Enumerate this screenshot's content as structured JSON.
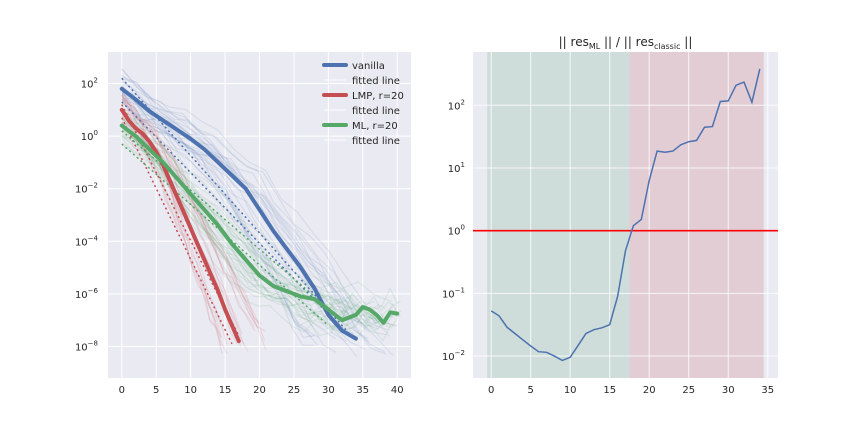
{
  "chart_data": [
    {
      "type": "line",
      "title": "",
      "xlabel": "",
      "ylabel": "",
      "xlim": [
        -2,
        42
      ],
      "ylim_log10": [
        -9.2,
        3.2
      ],
      "yscale": "log",
      "grid": true,
      "legend_position": "top-right",
      "x_ticks": [
        "0",
        "5",
        "10",
        "15",
        "20",
        "25",
        "30",
        "35",
        "40"
      ],
      "y_ticks": [
        {
          "base": "10",
          "exp": "2",
          "log": 2
        },
        {
          "base": "10",
          "exp": "0",
          "log": 0
        },
        {
          "base": "10",
          "exp": "−2",
          "log": -2
        },
        {
          "base": "10",
          "exp": "−4",
          "log": -4
        },
        {
          "base": "10",
          "exp": "−6",
          "log": -6
        },
        {
          "base": "10",
          "exp": "−8",
          "log": -8
        }
      ],
      "legend": [
        {
          "label": "vanilla",
          "color": "#4c72b0",
          "kind": "line"
        },
        {
          "label": "fitted line",
          "color": "#ffffff",
          "kind": "blank"
        },
        {
          "label": "LMP, r=20",
          "color": "#c44e52",
          "kind": "line"
        },
        {
          "label": "fitted line",
          "color": "#ffffff",
          "kind": "blank"
        },
        {
          "label": "ML, r=20",
          "color": "#55a868",
          "kind": "line"
        },
        {
          "label": "fitted line",
          "color": "#ffffff",
          "kind": "blank"
        }
      ],
      "series": [
        {
          "name": "vanilla",
          "color": "#4c72b0",
          "x": [
            0,
            2,
            4,
            6,
            8,
            10,
            12,
            14,
            16,
            18,
            20,
            22,
            24,
            26,
            28,
            30,
            32,
            34
          ],
          "log10_y": [
            1.8,
            1.4,
            0.95,
            0.6,
            0.25,
            -0.1,
            -0.5,
            -1.0,
            -1.5,
            -2.0,
            -2.8,
            -3.6,
            -4.3,
            -5.0,
            -5.8,
            -6.8,
            -7.4,
            -7.7
          ]
        },
        {
          "name": "LMP, r=20",
          "color": "#c44e52",
          "x": [
            0,
            1,
            2,
            3,
            4,
            5,
            6,
            7,
            8,
            9,
            10,
            11,
            12,
            13,
            14,
            15,
            16,
            17
          ],
          "log10_y": [
            1.0,
            0.6,
            0.3,
            0.1,
            -0.2,
            -0.6,
            -1.1,
            -1.7,
            -2.3,
            -2.9,
            -3.5,
            -4.1,
            -4.7,
            -5.3,
            -5.9,
            -6.6,
            -7.2,
            -7.8
          ]
        },
        {
          "name": "ML, r=20",
          "color": "#55a868",
          "x": [
            0,
            2,
            4,
            6,
            8,
            10,
            12,
            14,
            16,
            18,
            20,
            22,
            24,
            26,
            28,
            30,
            32,
            34,
            35,
            36,
            37,
            38,
            39,
            40
          ],
          "log10_y": [
            0.4,
            0.0,
            -0.5,
            -1.0,
            -1.6,
            -2.2,
            -2.8,
            -3.4,
            -4.1,
            -4.7,
            -5.3,
            -5.7,
            -5.9,
            -6.1,
            -6.2,
            -6.6,
            -7.0,
            -6.8,
            -6.5,
            -6.6,
            -6.8,
            -7.1,
            -6.7,
            -6.75
          ]
        }
      ],
      "fitted_lines": [
        {
          "color": "#4c72b0",
          "x": [
            0,
            33
          ],
          "log10_y": [
            2.2,
            -7.5
          ]
        },
        {
          "color": "#4c72b0",
          "x": [
            0,
            32
          ],
          "log10_y": [
            1.3,
            -7.3
          ]
        },
        {
          "color": "#c44e52",
          "x": [
            0,
            17
          ],
          "log10_y": [
            1.2,
            -7.6
          ]
        },
        {
          "color": "#c44e52",
          "x": [
            0,
            16
          ],
          "log10_y": [
            0.7,
            -7.9
          ]
        },
        {
          "color": "#55a868",
          "x": [
            0,
            28
          ],
          "log10_y": [
            0.2,
            -6.1
          ]
        },
        {
          "color": "#55a868",
          "x": [
            0,
            30
          ],
          "log10_y": [
            -0.3,
            -7.2
          ]
        }
      ]
    },
    {
      "type": "line",
      "title_pre": "|| res",
      "title_sub1": "ML",
      "title_mid": " || /  || res",
      "title_sub2": "classic",
      "title_post": " ||",
      "xlabel": "",
      "ylabel": "",
      "xlim": [
        -2.3,
        36.3
      ],
      "yscale": "log",
      "ylim_log10": [
        -2.35,
        2.85
      ],
      "grid": true,
      "x_ticks": [
        "0",
        "5",
        "10",
        "15",
        "20",
        "25",
        "30",
        "35"
      ],
      "y_ticks": [
        {
          "base": "10",
          "exp": "2",
          "log": 2
        },
        {
          "base": "10",
          "exp": "1",
          "log": 1
        },
        {
          "base": "10",
          "exp": "0",
          "log": 0
        },
        {
          "base": "10",
          "exp": "−1",
          "log": -1
        },
        {
          "base": "10",
          "exp": "−2",
          "log": -2
        }
      ],
      "regions": [
        {
          "x_start": -0.5,
          "x_end": 17.5,
          "color": "#55a868"
        },
        {
          "x_start": 17.5,
          "x_end": 34.5,
          "color": "#c44e52"
        }
      ],
      "hline": {
        "log10_y": 0,
        "color": "#ff0000"
      },
      "series": [
        {
          "name": "",
          "color": "#4c72b0",
          "x": [
            0,
            1,
            2,
            3,
            4,
            5,
            6,
            7,
            8,
            9,
            10,
            11,
            12,
            13,
            14,
            15,
            16,
            17,
            18,
            19,
            20,
            21,
            22,
            23,
            24,
            25,
            26,
            27,
            28,
            29,
            30,
            31,
            32,
            33,
            34
          ],
          "log10_y": [
            -1.28,
            -1.36,
            -1.54,
            -1.64,
            -1.74,
            -1.84,
            -1.93,
            -1.94,
            -2.0,
            -2.07,
            -2.02,
            -1.83,
            -1.64,
            -1.58,
            -1.55,
            -1.5,
            -1.05,
            -0.32,
            0.08,
            0.18,
            0.8,
            1.27,
            1.25,
            1.27,
            1.37,
            1.42,
            1.44,
            1.65,
            1.66,
            2.06,
            2.07,
            2.32,
            2.37,
            2.05,
            2.58
          ]
        }
      ]
    }
  ]
}
